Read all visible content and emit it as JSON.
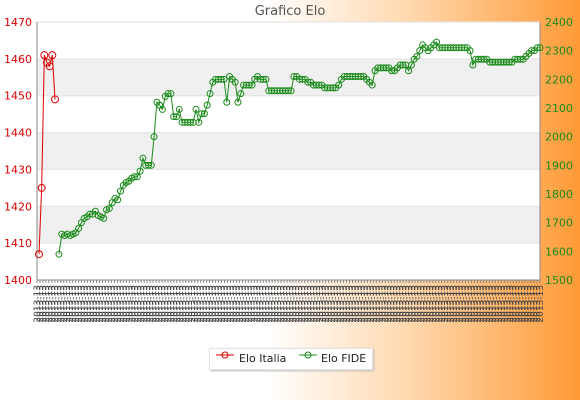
{
  "chart_data": {
    "type": "line",
    "title": "Grafico Elo",
    "legend_position": "bottom",
    "grid": true,
    "y_left": {
      "min": 1400,
      "max": 1470,
      "ticks": [
        1400,
        1410,
        1420,
        1430,
        1440,
        1450,
        1460,
        1470
      ],
      "color": "#dd0000"
    },
    "y_right": {
      "min": 1500,
      "max": 2400,
      "ticks": [
        1500,
        1600,
        1700,
        1800,
        1900,
        2000,
        2100,
        2200,
        2300,
        2400
      ],
      "color": "#1a8a1a"
    },
    "x_label_sample": "2013-13",
    "x_label_count": 170,
    "series": [
      {
        "name": "Elo Italia",
        "axis": "left",
        "color": "#dd0000",
        "values": [
          1407,
          1425,
          1461,
          1459,
          1458,
          1461,
          1449
        ]
      },
      {
        "name": "Elo FIDE",
        "axis": "right",
        "color": "#1a8a1a",
        "values": [
          1590,
          1660,
          1655,
          1660,
          1655,
          1660,
          1665,
          1680,
          1700,
          1715,
          1720,
          1730,
          1730,
          1740,
          1725,
          1720,
          1715,
          1745,
          1750,
          1770,
          1785,
          1780,
          1810,
          1830,
          1840,
          1845,
          1855,
          1860,
          1860,
          1880,
          1925,
          1900,
          1900,
          1900,
          2000,
          2120,
          2110,
          2095,
          2140,
          2150,
          2150,
          2070,
          2070,
          2095,
          2050,
          2050,
          2050,
          2050,
          2050,
          2095,
          2050,
          2080,
          2080,
          2110,
          2150,
          2190,
          2200,
          2200,
          2200,
          2200,
          2120,
          2210,
          2200,
          2190,
          2120,
          2150,
          2180,
          2180,
          2180,
          2180,
          2200,
          2210,
          2200,
          2200,
          2200,
          2160,
          2160,
          2160,
          2160,
          2160,
          2160,
          2160,
          2160,
          2160,
          2210,
          2210,
          2200,
          2200,
          2200,
          2190,
          2190,
          2180,
          2180,
          2180,
          2180,
          2170,
          2170,
          2170,
          2170,
          2170,
          2180,
          2200,
          2210,
          2210,
          2210,
          2210,
          2210,
          2210,
          2210,
          2210,
          2200,
          2190,
          2180,
          2230,
          2240,
          2240,
          2240,
          2240,
          2240,
          2230,
          2230,
          2240,
          2250,
          2250,
          2250,
          2230,
          2250,
          2270,
          2280,
          2300,
          2320,
          2310,
          2300,
          2310,
          2320,
          2330,
          2310,
          2310,
          2310,
          2310,
          2310,
          2310,
          2310,
          2310,
          2310,
          2310,
          2310,
          2300,
          2250,
          2270,
          2270,
          2270,
          2270,
          2270,
          2260,
          2260,
          2260,
          2260,
          2260,
          2260,
          2260,
          2260,
          2260,
          2270,
          2270,
          2270,
          2270,
          2280,
          2290,
          2300,
          2300,
          2310,
          2310
        ]
      }
    ]
  }
}
